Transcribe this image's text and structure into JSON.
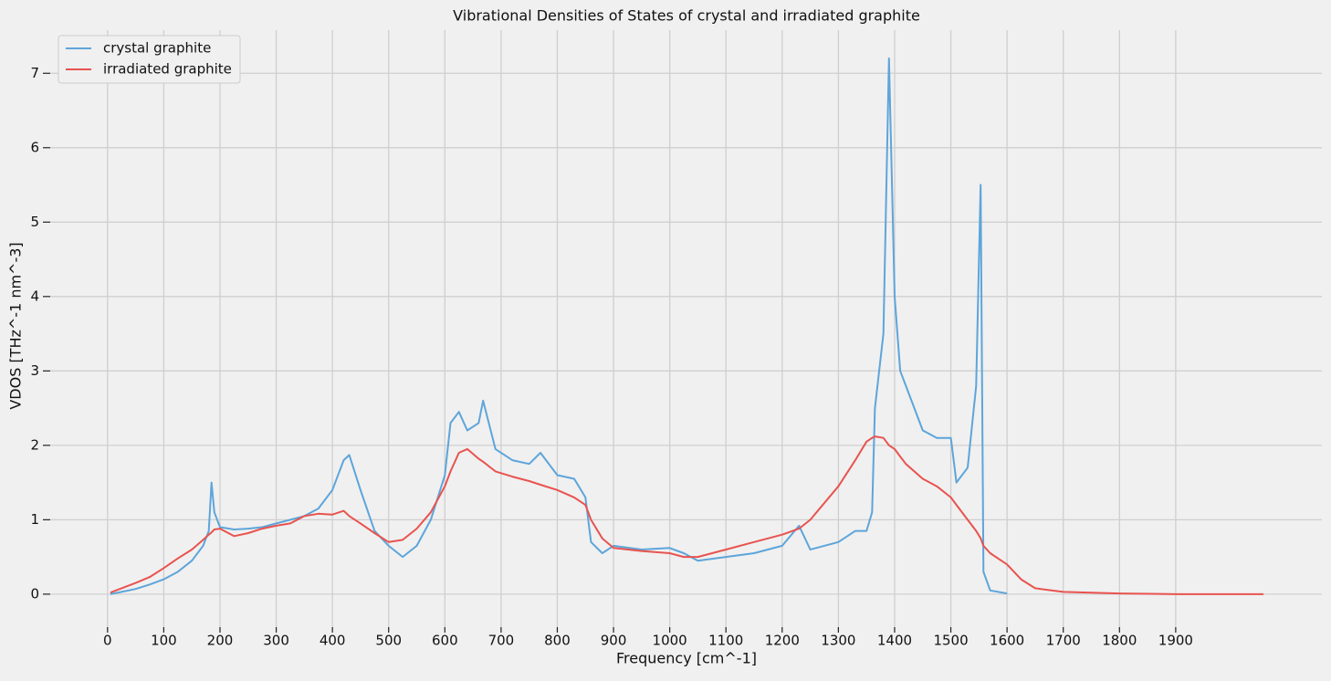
{
  "chart_data": {
    "type": "line",
    "title": "Vibrational Densities of States of crystal and irradiated graphite",
    "x_label": "Frequency [cm^-1]",
    "y_label": "VDOS [THz^-1 nm^-3]",
    "x": [
      5,
      25,
      50,
      75,
      100,
      125,
      150,
      170,
      180,
      185,
      190,
      200,
      225,
      250,
      275,
      300,
      325,
      350,
      375,
      400,
      420,
      430,
      450,
      475,
      500,
      525,
      550,
      575,
      600,
      610,
      625,
      640,
      660,
      668,
      690,
      720,
      750,
      770,
      800,
      830,
      850,
      860,
      880,
      900,
      950,
      1000,
      1025,
      1050,
      1100,
      1150,
      1200,
      1230,
      1250,
      1300,
      1330,
      1350,
      1360,
      1365,
      1380,
      1390,
      1400,
      1410,
      1420,
      1450,
      1475,
      1500,
      1510,
      1530,
      1545,
      1553,
      1558,
      1570,
      1600,
      1625,
      1650,
      1700,
      1800,
      1900,
      2056
    ],
    "series": [
      {
        "name": "crystal graphite",
        "color": "#5da5da",
        "values": [
          0,
          0.03,
          0.07,
          0.13,
          0.2,
          0.3,
          0.45,
          0.65,
          0.85,
          1.5,
          1.1,
          0.9,
          0.87,
          0.88,
          0.9,
          0.95,
          1.0,
          1.05,
          1.15,
          1.4,
          1.8,
          1.87,
          1.4,
          0.85,
          0.65,
          0.5,
          0.65,
          1.0,
          1.6,
          2.3,
          2.45,
          2.2,
          2.3,
          2.6,
          1.95,
          1.8,
          1.75,
          1.9,
          1.6,
          1.55,
          1.3,
          0.7,
          0.55,
          0.65,
          0.6,
          0.62,
          0.55,
          0.45,
          0.5,
          0.55,
          0.65,
          0.92,
          0.6,
          0.7,
          0.85,
          0.85,
          1.1,
          2.5,
          3.5,
          7.2,
          4.0,
          3.0,
          2.8,
          2.2,
          2.1,
          2.1,
          1.5,
          1.7,
          2.8,
          5.5,
          0.3,
          0.05,
          0.01,
          null,
          null,
          null,
          null,
          null,
          null
        ]
      },
      {
        "name": "irradiated graphite",
        "color": "#e8534f",
        "values": [
          0.02,
          0.08,
          0.15,
          0.23,
          0.35,
          0.48,
          0.6,
          0.73,
          0.8,
          0.83,
          0.87,
          0.88,
          0.78,
          0.82,
          0.88,
          0.92,
          0.95,
          1.05,
          1.08,
          1.07,
          1.12,
          1.05,
          0.95,
          0.82,
          0.7,
          0.73,
          0.88,
          1.1,
          1.45,
          1.65,
          1.9,
          1.95,
          1.82,
          1.78,
          1.65,
          1.58,
          1.52,
          1.47,
          1.4,
          1.3,
          1.2,
          1.0,
          0.75,
          0.62,
          0.58,
          0.55,
          0.5,
          0.5,
          0.6,
          0.7,
          0.8,
          0.88,
          1.0,
          1.45,
          1.8,
          2.05,
          2.1,
          2.12,
          2.1,
          2.0,
          1.95,
          1.85,
          1.75,
          1.55,
          1.45,
          1.3,
          1.2,
          1.0,
          0.85,
          0.75,
          0.65,
          0.55,
          0.4,
          0.2,
          0.08,
          0.03,
          0.01,
          0,
          0
        ]
      }
    ],
    "xlim": [
      -102,
      2160
    ],
    "ylim": [
      -0.48,
      7.58
    ],
    "xticks": [
      0,
      100,
      200,
      300,
      400,
      500,
      600,
      700,
      800,
      900,
      1000,
      1100,
      1200,
      1300,
      1400,
      1500,
      1600,
      1700,
      1800,
      1900
    ],
    "yticks": [
      0,
      1,
      2,
      3,
      4,
      5,
      6,
      7
    ],
    "grid": true,
    "legend": "upper-left"
  }
}
